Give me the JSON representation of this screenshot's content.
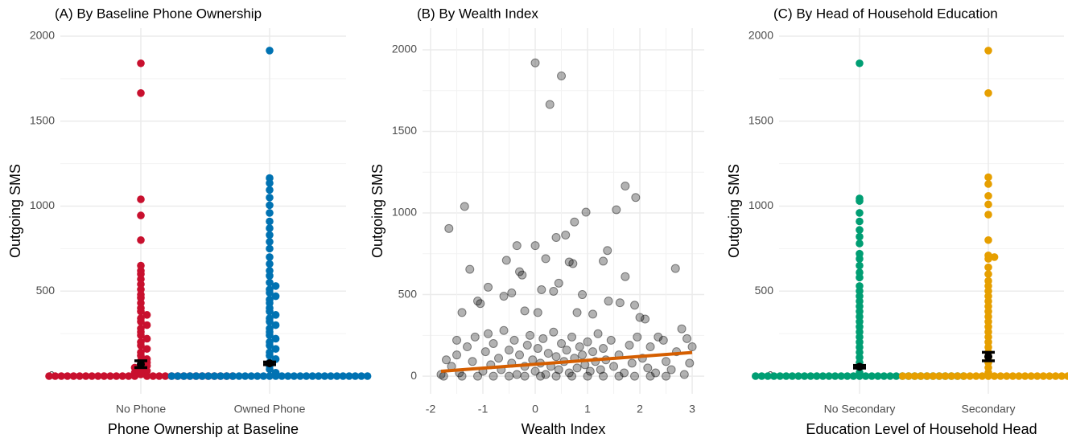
{
  "chart_data": [
    {
      "type": "strip",
      "title": "(A) By Baseline Phone Ownership",
      "xlabel": "Phone Ownership at Baseline",
      "ylabel": "Outgoing SMS",
      "categories": [
        "No Phone",
        "Owned Phone"
      ],
      "series": [
        {
          "color": "#c8102e",
          "values": [
            1840,
            1665,
            1040,
            945,
            800,
            650,
            620,
            600,
            570,
            540,
            510,
            480,
            460,
            430,
            400,
            380,
            360,
            340,
            320,
            300,
            280,
            260,
            240,
            220,
            200,
            180,
            160,
            140,
            120,
            100,
            90,
            80,
            70,
            60,
            50,
            40,
            30,
            20,
            10,
            0,
            0,
            0,
            0,
            0,
            0,
            0,
            0,
            0,
            0,
            0,
            0,
            0,
            0,
            0,
            0,
            0,
            0,
            0,
            0,
            0,
            0,
            0,
            0,
            0,
            0,
            0,
            0,
            0,
            0
          ]
        },
        {
          "color": "#0072b2",
          "values": [
            1915,
            1165,
            1135,
            1095,
            1050,
            1005,
            960,
            910,
            870,
            830,
            790,
            750,
            700,
            660,
            620,
            590,
            550,
            530,
            510,
            490,
            470,
            450,
            430,
            400,
            380,
            360,
            340,
            320,
            300,
            280,
            260,
            240,
            220,
            200,
            180,
            160,
            140,
            120,
            100,
            80,
            60,
            40,
            20,
            0,
            0,
            0,
            0,
            0,
            0,
            0,
            0,
            0,
            0,
            0,
            0,
            0,
            0,
            0,
            0,
            0,
            0,
            0,
            0,
            0,
            0,
            0,
            0,
            0,
            0,
            0,
            0,
            0,
            0,
            0,
            0,
            0
          ]
        }
      ],
      "means": [
        70,
        75
      ],
      "errors": [
        20,
        8
      ],
      "ylim": [
        -104,
        2047
      ],
      "yticks": [
        0,
        500,
        1000,
        1500,
        2000
      ],
      "minor_yticks": [
        250,
        750,
        1250,
        1750
      ],
      "grid": true
    },
    {
      "type": "scatter",
      "title": "(B) By Wealth Index",
      "xlabel": "Wealth Index",
      "ylabel": "Outgoing SMS",
      "color": "#000000",
      "x": [
        0,
        0.5,
        0.28,
        1.72,
        1.92,
        -1.35,
        1.55,
        0.97,
        0.75,
        -1.65,
        0.58,
        0.4,
        -0.35,
        0,
        1.38,
        0.2,
        -0.55,
        0.65,
        0.72,
        1.3,
        2.68,
        -1.25,
        -0.3,
        -0.25,
        1.72,
        0.45,
        -0.9,
        0.12,
        0.35,
        -0.45,
        0.9,
        -0.6,
        1.4,
        -1.1,
        -1.05,
        1.62,
        1.9,
        0.05,
        -0.2,
        0.8,
        1.1,
        -1.4,
        2.1,
        2.0,
        2.8,
        2.9,
        2.35,
        -1.5,
        -1.7,
        -1.8,
        -1.6,
        -1.5,
        -1.45,
        -1.3,
        -1.2,
        -1.15,
        -1.0,
        -0.95,
        -0.9,
        -0.85,
        -0.8,
        -0.7,
        -0.65,
        -0.6,
        -0.5,
        -0.45,
        -0.4,
        -0.35,
        -0.3,
        -0.2,
        -0.15,
        -0.1,
        -0.05,
        0,
        0.05,
        0.1,
        0.15,
        0.2,
        0.25,
        0.3,
        0.35,
        0.4,
        0.45,
        0.5,
        0.55,
        0.6,
        0.65,
        0.7,
        0.75,
        0.8,
        0.85,
        0.9,
        0.95,
        1.0,
        1.05,
        1.1,
        1.15,
        1.2,
        1.25,
        1.3,
        1.35,
        1.45,
        1.5,
        1.6,
        1.7,
        1.8,
        1.85,
        1.95,
        2.05,
        2.15,
        2.2,
        2.3,
        2.45,
        2.5,
        2.6,
        2.7,
        2.85,
        2.95,
        3.0,
        -1.75,
        -1.4,
        -1.1,
        -0.8,
        -0.5,
        -0.2,
        0.1,
        0.4,
        0.7,
        1.0,
        1.3,
        1.6,
        1.9,
        2.2,
        2.5
      ],
      "y": [
        1920,
        1840,
        1665,
        1165,
        1095,
        1040,
        1020,
        1005,
        945,
        905,
        865,
        850,
        800,
        800,
        770,
        720,
        710,
        700,
        690,
        705,
        660,
        655,
        640,
        620,
        610,
        570,
        545,
        530,
        520,
        510,
        500,
        490,
        460,
        460,
        445,
        450,
        435,
        390,
        400,
        390,
        380,
        390,
        350,
        360,
        290,
        230,
        240,
        220,
        100,
        10,
        60,
        130,
        20,
        180,
        90,
        240,
        30,
        150,
        260,
        70,
        200,
        110,
        40,
        280,
        160,
        80,
        220,
        10,
        130,
        60,
        190,
        250,
        100,
        30,
        170,
        80,
        230,
        10,
        140,
        60,
        270,
        120,
        40,
        200,
        90,
        160,
        20,
        240,
        110,
        50,
        180,
        130,
        70,
        210,
        30,
        150,
        90,
        260,
        40,
        170,
        100,
        220,
        60,
        130,
        20,
        190,
        80,
        240,
        110,
        50,
        180,
        20,
        220,
        90,
        40,
        150,
        10,
        80,
        180,
        0,
        0,
        0,
        0,
        0,
        0,
        0,
        0,
        0,
        0,
        0,
        0,
        0,
        0,
        0
      ],
      "fit": {
        "color": "#d55e00",
        "x": [
          -1.8,
          3
        ],
        "y": [
          30,
          145
        ]
      },
      "xlim": [
        -2.154,
        3.23
      ],
      "xticks": [
        -2,
        -1,
        0,
        1,
        2,
        3
      ],
      "minor_xticks": [
        -1.5,
        -0.5,
        0.5,
        1.5,
        2.5
      ],
      "ylim": [
        -108,
        2133
      ],
      "yticks": [
        0,
        500,
        1000,
        1500,
        2000
      ],
      "minor_yticks": [
        250,
        750,
        1250,
        1750
      ],
      "grid": true
    },
    {
      "type": "strip",
      "title": "(C) By Head of Household Education",
      "xlabel": "Education Level of Household Head",
      "ylabel": "Outgoing SMS",
      "categories": [
        "No Secondary",
        "Secondary"
      ],
      "series": [
        {
          "color": "#009e73",
          "values": [
            1840,
            1045,
            1030,
            960,
            910,
            860,
            820,
            780,
            720,
            690,
            650,
            610,
            580,
            530,
            500,
            470,
            440,
            410,
            380,
            350,
            320,
            290,
            260,
            230,
            200,
            170,
            140,
            110,
            80,
            50,
            20,
            0,
            0,
            0,
            0,
            0,
            0,
            0,
            0,
            0,
            0,
            0,
            0,
            0,
            0,
            0,
            0,
            0,
            0,
            0,
            0,
            0,
            0,
            0,
            0,
            0,
            0,
            0,
            0,
            0,
            0,
            0,
            0,
            0,
            0,
            0
          ]
        },
        {
          "color": "#e69f00",
          "values": [
            1915,
            1665,
            1170,
            1130,
            1060,
            1010,
            950,
            800,
            710,
            700,
            690,
            640,
            600,
            560,
            530,
            500,
            470,
            440,
            410,
            380,
            350,
            320,
            290,
            260,
            230,
            200,
            170,
            140,
            110,
            80,
            50,
            20,
            0,
            0,
            0,
            0,
            0,
            0,
            0,
            0,
            0,
            0,
            0,
            0,
            0,
            0,
            0,
            0,
            0,
            0,
            0,
            0,
            0,
            0,
            0,
            0,
            0,
            0,
            0,
            0,
            0,
            0
          ]
        }
      ],
      "means": [
        55,
        115
      ],
      "errors": [
        8,
        25
      ],
      "ylim": [
        -104,
        2047
      ],
      "yticks": [
        0,
        500,
        1000,
        1500,
        2000
      ],
      "minor_yticks": [
        250,
        750,
        1250,
        1750
      ],
      "grid": true
    }
  ]
}
